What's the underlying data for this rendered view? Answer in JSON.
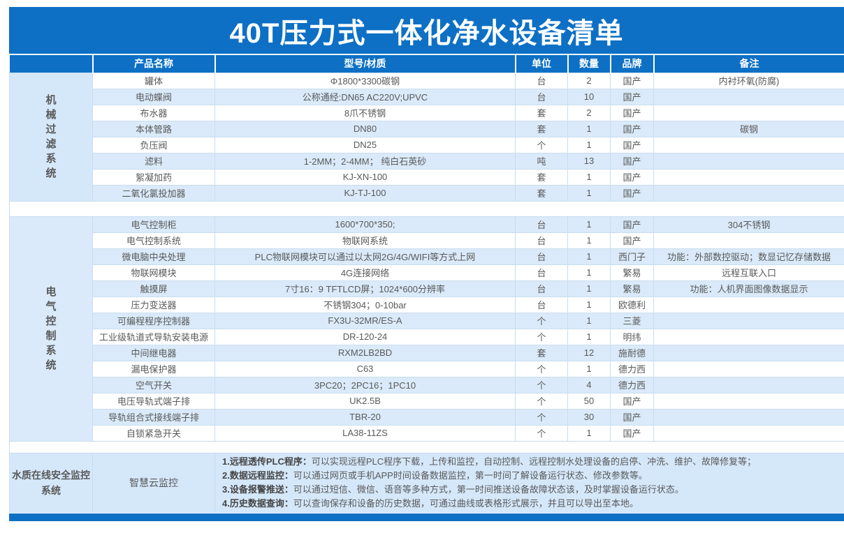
{
  "title": "40T压力式一体化净水设备清单",
  "columns": [
    "产品名称",
    "型号/材质",
    "单位",
    "数量",
    "品牌",
    "备注"
  ],
  "sections": [
    {
      "category": "机械过滤系统",
      "rows": [
        [
          "罐体",
          "Φ1800*3300碳钢",
          "台",
          "2",
          "国产",
          "内衬环氧(防腐)"
        ],
        [
          "电动蝶阀",
          "公称通经:DN65 AC220V;UPVC",
          "台",
          "10",
          "国产",
          ""
        ],
        [
          "布水器",
          "8爪不锈钢",
          "套",
          "2",
          "国产",
          ""
        ],
        [
          "本体管路",
          "DN80",
          "套",
          "1",
          "国产",
          "碳钢"
        ],
        [
          "负压阀",
          "DN25",
          "个",
          "1",
          "国产",
          ""
        ],
        [
          "滤料",
          "1-2MM；2-4MM；  纯白石英砂",
          "吨",
          "13",
          "国产",
          ""
        ],
        [
          "絮凝加药",
          "KJ-XN-100",
          "套",
          "1",
          "国产",
          ""
        ],
        [
          "二氧化氯投加器",
          "KJ-TJ-100",
          "套",
          "1",
          "国产",
          ""
        ]
      ]
    },
    {
      "category": "电气控制系统",
      "rows": [
        [
          "电气控制柜",
          "1600*700*350;",
          "台",
          "1",
          "国产",
          "304不锈钢"
        ],
        [
          "电气控制系统",
          "物联网系统",
          "台",
          "1",
          "国产",
          ""
        ],
        [
          "微电脑中央处理",
          "PLC物联网模块可以通过以太网2G/4G/WIFI等方式上网",
          "台",
          "1",
          "西门子",
          "功能：外部数控驱动；数显记忆存储数据"
        ],
        [
          "物联网模块",
          "4G连接网络",
          "台",
          "1",
          "繁易",
          "远程互联入口"
        ],
        [
          "触摸屏",
          "7寸16：9 TFTLCD屏；1024*600分辨率",
          "台",
          "1",
          "繁易",
          "功能：人机界面图像数据显示"
        ],
        [
          "压力变送器",
          "不锈钢304；0-10bar",
          "台",
          "1",
          "欧德利",
          ""
        ],
        [
          "可编程程序控制器",
          "FX3U-32MR/ES-A",
          "个",
          "1",
          "三菱",
          ""
        ],
        [
          "工业级轨道式导轨安装电源",
          "DR-120-24",
          "个",
          "1",
          "明纬",
          ""
        ],
        [
          "中间继电器",
          "RXM2LB2BD",
          "套",
          "12",
          "施耐德",
          ""
        ],
        [
          "漏电保护器",
          "C63",
          "个",
          "1",
          "德力西",
          ""
        ],
        [
          "空气开关",
          "3PC20；2PC16；1PC10",
          "个",
          "4",
          "德力西",
          ""
        ],
        [
          "电压导轨式端子排",
          "UK2.5B",
          "个",
          "50",
          "国产",
          ""
        ],
        [
          "导轨组合式接线端子排",
          "TBR-20",
          "个",
          "30",
          "国产",
          ""
        ],
        [
          "自锁紧急开关",
          "LA38-11ZS",
          "个",
          "1",
          "国产",
          ""
        ]
      ]
    }
  ],
  "monitoring": {
    "category": "水质在线安全监控系统",
    "name": "智慧云监控",
    "features": [
      {
        "label": "1.远程透传PLC程序：",
        "text": "可以实现远程PLC程序下载，上传和监控，自动控制、远程控制水处理设备的启停、冲洗、维护、故障修复等；"
      },
      {
        "label": "2.数据远程监控：",
        "text": "可以通过网页或手机APP时间设备数据监控，第一时间了解设备运行状态、修改参数等。"
      },
      {
        "label": "3.设备报警推送：",
        "text": "可以通过短信、微信、语音等多种方式，第一时间推送设备故障状态该，及时掌握设备运行状态。"
      },
      {
        "label": "4.历史数据查询：",
        "text": "可以查询保存和设备的历史数据，可通过曲线或表格形式展示，并且可以导出至本地。"
      }
    ]
  },
  "colors": {
    "header_blue": "#0d70c5",
    "row_shade": "#daeafa",
    "category_shade": "#d5e8fa",
    "text": "#595959"
  }
}
